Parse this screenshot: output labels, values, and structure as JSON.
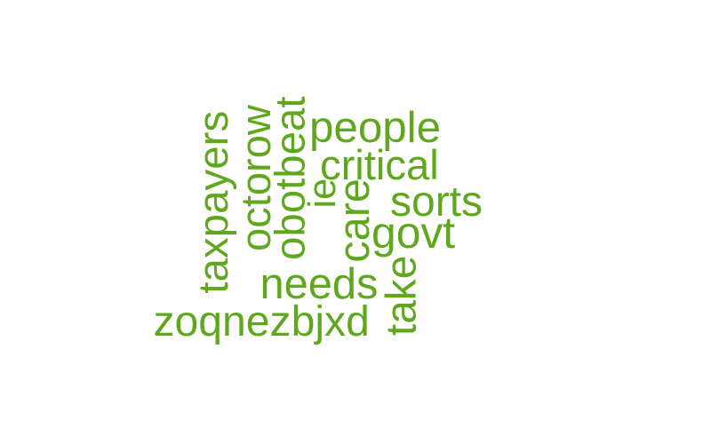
{
  "word_cloud": {
    "color": "#5fa81e",
    "words": [
      {
        "text": "taxpayers",
        "orientation": "vertical"
      },
      {
        "text": "octorow",
        "orientation": "vertical"
      },
      {
        "text": "obotbeat",
        "orientation": "vertical"
      },
      {
        "text": "people",
        "orientation": "horizontal"
      },
      {
        "text": "critical",
        "orientation": "horizontal"
      },
      {
        "text": "ie",
        "orientation": "vertical"
      },
      {
        "text": "sorts",
        "orientation": "horizontal"
      },
      {
        "text": "care",
        "orientation": "vertical"
      },
      {
        "text": "govt",
        "orientation": "horizontal"
      },
      {
        "text": "needs",
        "orientation": "horizontal"
      },
      {
        "text": "take",
        "orientation": "vertical"
      },
      {
        "text": "zoqnezbjxd",
        "orientation": "horizontal"
      }
    ]
  }
}
